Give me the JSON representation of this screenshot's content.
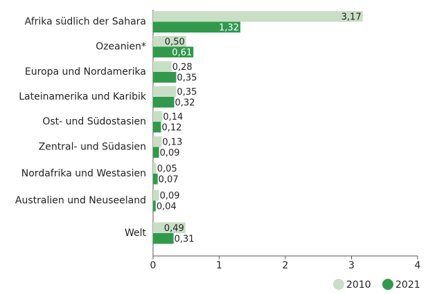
{
  "chart_data": {
    "type": "bar",
    "orientation": "horizontal",
    "categories": [
      "Afrika südlich der Sahara",
      "Ozeanien*",
      "Europa und Nordamerika",
      "Lateinamerika und Karibik",
      "Ost- und Südostasien",
      "Zentral- und Südasien",
      "Nordafrika und Westasien",
      "Australien und Neuseeland",
      "Welt"
    ],
    "series": [
      {
        "name": "2010",
        "color": "#c9dfc5",
        "values": [
          3.17,
          0.5,
          0.28,
          0.35,
          0.14,
          0.13,
          0.05,
          0.09,
          0.49
        ],
        "value_labels": [
          "3,17",
          "0,50",
          "0,28",
          "0,35",
          "0,14",
          "0,13",
          "0,05",
          "0,09",
          "0,49"
        ]
      },
      {
        "name": "2021",
        "color": "#2f9a4c",
        "values": [
          1.32,
          0.61,
          0.35,
          0.32,
          0.12,
          0.09,
          0.07,
          0.04,
          0.31
        ],
        "value_labels": [
          "1,32",
          "0,61",
          "0,35",
          "0,32",
          "0,12",
          "0,09",
          "0,07",
          "0,04",
          "0,31"
        ]
      }
    ],
    "xlim": [
      0,
      4
    ],
    "xticks": [
      0,
      1,
      2,
      3,
      4
    ],
    "legend": "bottom-right"
  }
}
